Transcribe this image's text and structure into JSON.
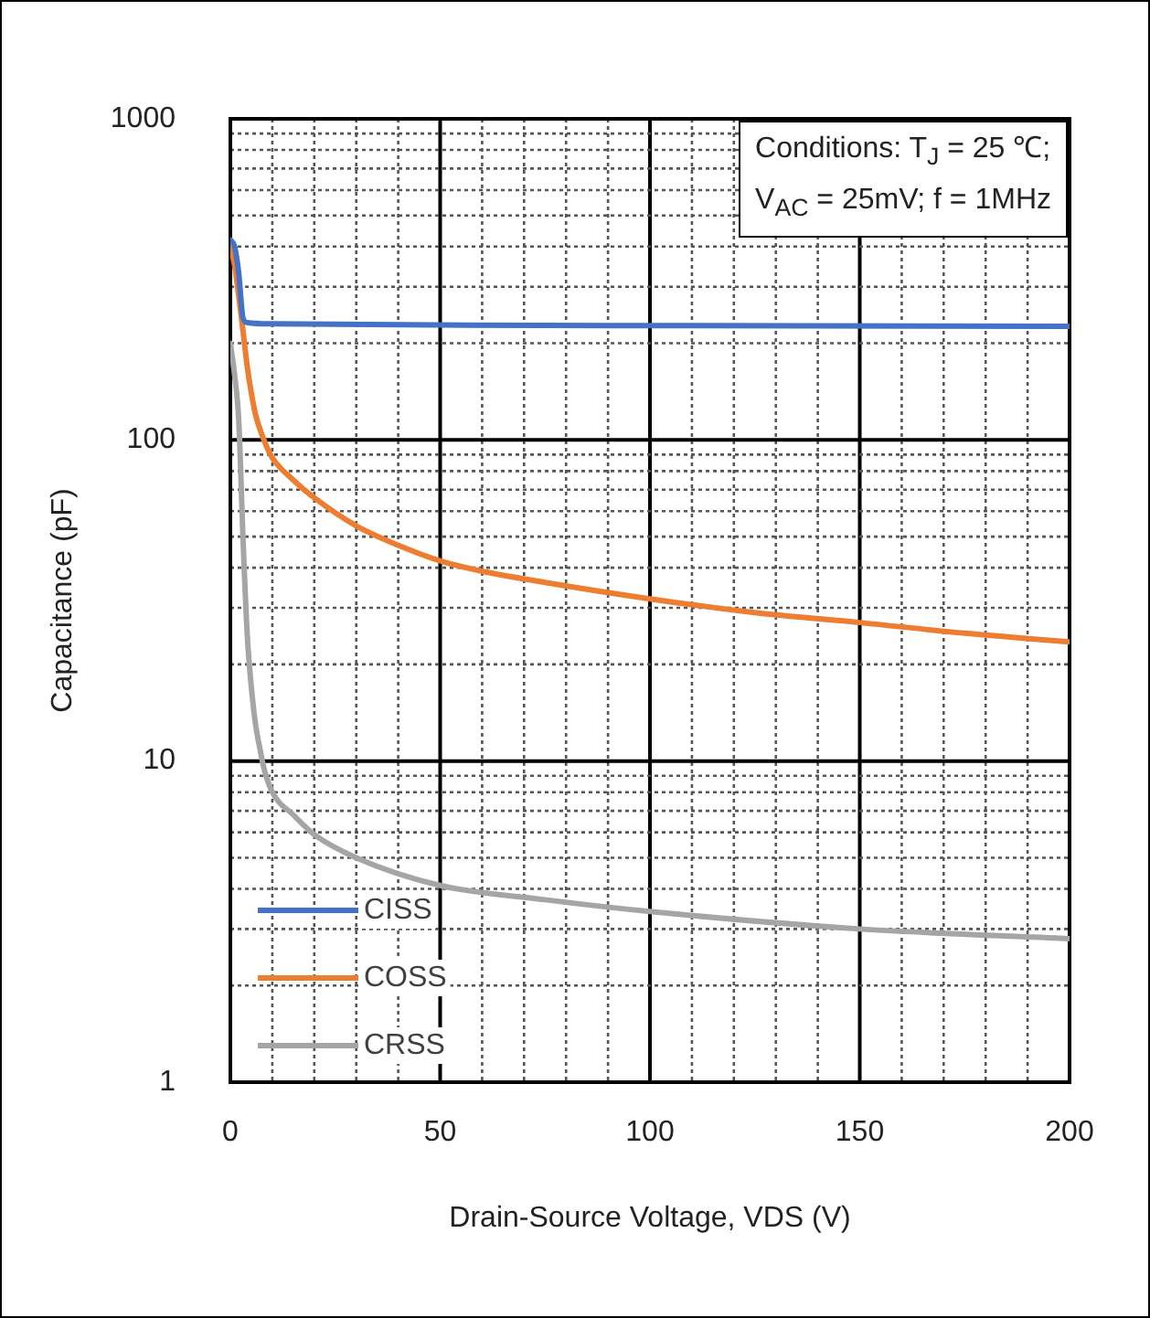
{
  "chart_data": {
    "type": "line",
    "xlabel": "Drain-Source Voltage, VDS (V)",
    "ylabel": "Capacitance (pF)",
    "annotations": [
      "Conditions:   T$_{J}$ = 25 ℃;",
      "V$_{AC}$ = 25mV;  f = 1MHz"
    ],
    "log": "y",
    "grid": true,
    "legend": "bottom left",
    "marker": "none",
    "line_style": "solid",
    "xlim": [
      0,
      200
    ],
    "ylim": [
      1,
      1000
    ],
    "xticks": [
      0,
      {
        "value": 10,
        "label": null
      },
      {
        "value": 20,
        "label": null
      },
      {
        "value": 30,
        "label": null
      },
      {
        "value": 40,
        "label": null
      },
      50,
      {
        "value": 60,
        "label": null
      },
      {
        "value": 70,
        "label": null
      },
      {
        "value": 80,
        "label": null
      },
      {
        "value": 90,
        "label": null
      },
      100,
      {
        "value": 110,
        "label": null
      },
      {
        "value": 120,
        "label": null
      },
      {
        "value": 130,
        "label": null
      },
      {
        "value": 140,
        "label": null
      },
      150,
      {
        "value": 160,
        "label": null
      },
      {
        "value": 170,
        "label": null
      },
      {
        "value": 180,
        "label": null
      },
      {
        "value": 190,
        "label": null
      },
      200
    ],
    "yticks": [
      1,
      {
        "value": 2,
        "label": null
      },
      {
        "value": 3,
        "label": null
      },
      {
        "value": 4,
        "label": null
      },
      {
        "value": 5,
        "label": null
      },
      {
        "value": 6,
        "label": null
      },
      {
        "value": 7,
        "label": null
      },
      {
        "value": 8,
        "label": null
      },
      {
        "value": 9,
        "label": null
      },
      10,
      {
        "value": 20,
        "label": null
      },
      {
        "value": 30,
        "label": null
      },
      {
        "value": 40,
        "label": null
      },
      {
        "value": 50,
        "label": null
      },
      {
        "value": 60,
        "label": null
      },
      {
        "value": 70,
        "label": null
      },
      {
        "value": 80,
        "label": null
      },
      {
        "value": 90,
        "label": null
      },
      100,
      {
        "value": 200,
        "label": null
      },
      {
        "value": 300,
        "label": null
      },
      {
        "value": 400,
        "label": null
      },
      {
        "value": 500,
        "label": null
      },
      {
        "value": 600,
        "label": null
      },
      {
        "value": 700,
        "label": null
      },
      {
        "value": 800,
        "label": null
      },
      {
        "value": 900,
        "label": null
      },
      1000
    ],
    "series": [
      {
        "name": "CISS",
        "color": "#4472c4",
        "x": [
          0,
          1,
          2,
          3,
          4,
          10,
          50,
          100,
          200
        ],
        "values": [
          420,
          400,
          330,
          240,
          232,
          230,
          228,
          227,
          226
        ]
      },
      {
        "name": "COSS",
        "color": "#ed7d31",
        "x": [
          0,
          1,
          2,
          3,
          4,
          5,
          6,
          8,
          10,
          15,
          20,
          30,
          40,
          50,
          60,
          75,
          100,
          125,
          150,
          175,
          200
        ],
        "values": [
          400,
          350,
          280,
          220,
          170,
          140,
          120,
          100,
          88,
          75,
          66,
          54,
          47,
          42,
          39,
          36,
          32,
          29,
          27,
          25,
          23.5
        ]
      },
      {
        "name": "CRSS",
        "color": "#a5a5a5",
        "x": [
          0,
          1,
          2,
          3,
          4,
          5,
          6,
          7,
          8,
          10,
          15,
          20,
          30,
          50,
          75,
          100,
          150,
          200
        ],
        "values": [
          200,
          160,
          115,
          50,
          25,
          17,
          13,
          11,
          9.5,
          8,
          6.8,
          5.9,
          5,
          4.1,
          3.7,
          3.4,
          3.0,
          2.8
        ]
      }
    ]
  }
}
